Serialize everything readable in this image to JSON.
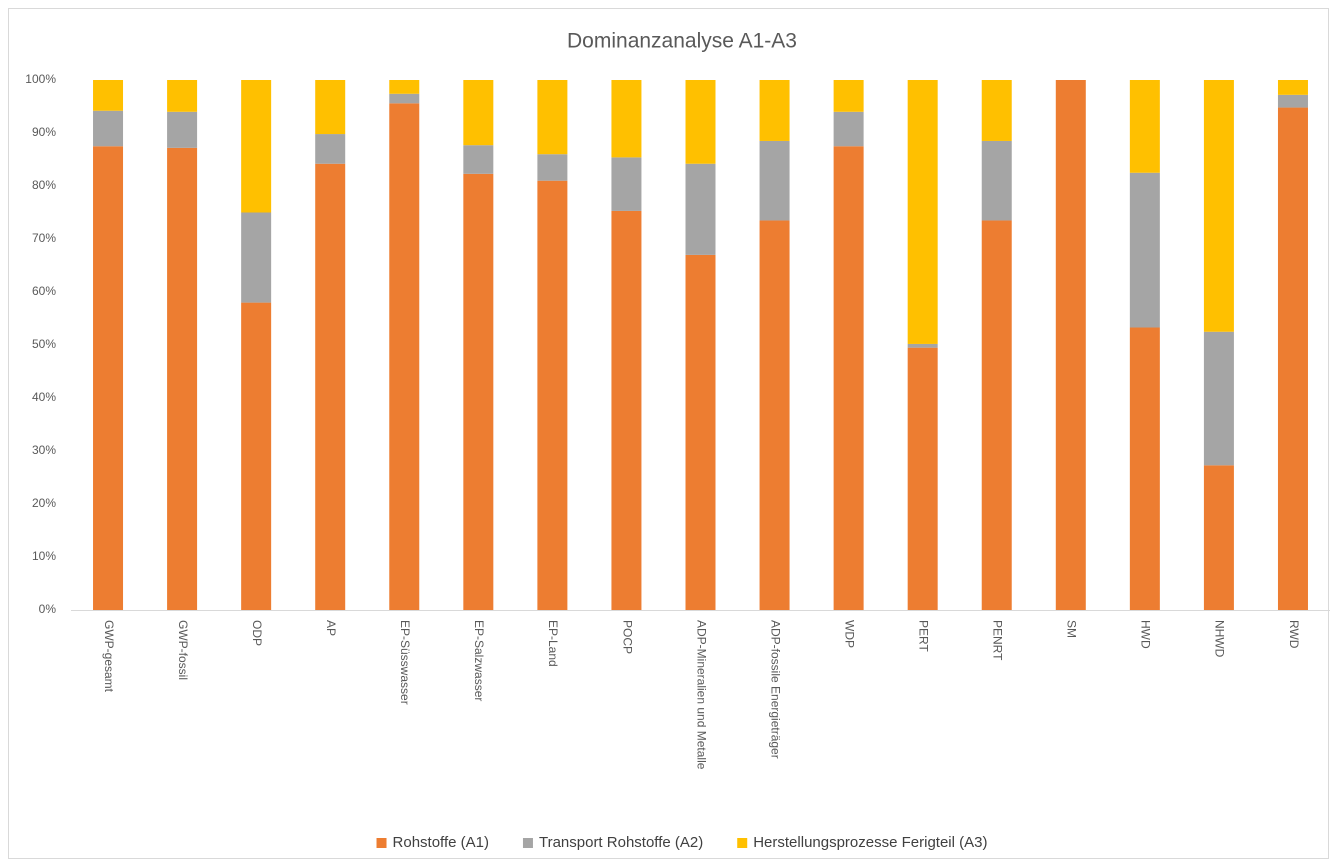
{
  "chart_data": {
    "type": "stacked_bar",
    "title": "Dominanzanalyse A1-A3",
    "categories": [
      "GWP-gesamt",
      "GWP-fossil",
      "ODP",
      "AP",
      "EP-Süsswasser",
      "EP-Salzwasser",
      "EP-Land",
      "POCP",
      "ADP-Mineralien und Metalle",
      "ADP-fossile Energieträger",
      "WDP",
      "PERT",
      "PENRT",
      "SM",
      "HWD",
      "NHWD",
      "RWD"
    ],
    "series": [
      {
        "name": "Rohstoffe  (A1)",
        "color": "#ed7d31",
        "values": [
          87.5,
          87.2,
          58,
          84.2,
          95.6,
          82.3,
          81,
          75.3,
          67,
          73.5,
          87.5,
          49.5,
          73.5,
          100,
          53.3,
          27.3,
          94.8
        ]
      },
      {
        "name": "Transport Rohstoffe (A2)",
        "color": "#a5a5a5",
        "values": [
          6.7,
          6.8,
          17,
          5.6,
          1.8,
          5.4,
          5,
          10.1,
          17.2,
          15,
          6.5,
          0.7,
          15,
          0,
          29.2,
          25.2,
          2.4
        ]
      },
      {
        "name": "Herstellungsprozesse Ferigteil (A3)",
        "color": "#ffc000",
        "values": [
          5.8,
          6,
          25,
          10.2,
          2.6,
          12.3,
          14,
          14.6,
          15.8,
          11.5,
          6,
          49.8,
          11.5,
          0,
          17.5,
          47.5,
          2.8
        ]
      }
    ],
    "ylim": [
      0,
      100
    ],
    "yticks": [
      {
        "value": 0,
        "label": "0%"
      },
      {
        "value": 10,
        "label": "10%"
      },
      {
        "value": 20,
        "label": "20%"
      },
      {
        "value": 30,
        "label": "30%"
      },
      {
        "value": 40,
        "label": "40%"
      },
      {
        "value": 50,
        "label": "50%"
      },
      {
        "value": 60,
        "label": "60%"
      },
      {
        "value": 70,
        "label": "70%"
      },
      {
        "value": 80,
        "label": "80%"
      },
      {
        "value": 90,
        "label": "90%"
      },
      {
        "value": 100,
        "label": "100%"
      }
    ],
    "grid": false,
    "legend": "bottom"
  }
}
